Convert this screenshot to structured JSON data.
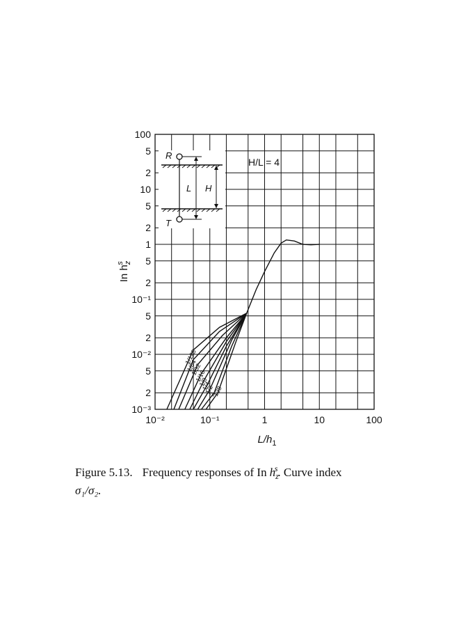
{
  "chart_data": {
    "type": "line",
    "xlog": true,
    "ylog": true,
    "grid": true,
    "xlim": [
      0.01,
      100
    ],
    "ylim": [
      0.001,
      100
    ],
    "xticks": [
      {
        "value": 0.01,
        "label": "10⁻²"
      },
      {
        "value": 0.1,
        "label": "10⁻¹"
      },
      1,
      10,
      100
    ],
    "xgrid": [
      0.02,
      0.05,
      0.2,
      0.5,
      2,
      5,
      20,
      50
    ],
    "yticks": [
      100,
      {
        "value": 50,
        "label": "5"
      },
      {
        "value": 20,
        "label": "2"
      },
      10,
      5,
      2,
      1,
      {
        "value": 0.5,
        "label": "5"
      },
      {
        "value": 0.2,
        "label": "2"
      },
      {
        "value": 0.1,
        "label": "10⁻¹"
      },
      {
        "value": 0.05,
        "label": "5"
      },
      {
        "value": 0.02,
        "label": "2"
      },
      {
        "value": 0.01,
        "label": "10⁻²"
      },
      {
        "value": 0.005,
        "label": "5"
      },
      {
        "value": 0.002,
        "label": "2"
      },
      {
        "value": 0.001,
        "label": "10⁻³"
      }
    ],
    "xlabel": {
      "base": "L/h",
      "sub": "1"
    },
    "ylabel": {
      "base": "In h",
      "sub": "z",
      "sup": "s"
    },
    "annotation": "H/L = 4",
    "inset_labels": {
      "R": "R",
      "T": "T",
      "L": "L",
      "H": "H"
    },
    "color": "#111111",
    "series": [
      {
        "x": [
          0.47,
          0.7,
          1,
          1.5,
          2,
          2.5,
          3.5,
          5,
          7,
          10
        ],
        "values": [
          0.056,
          0.15,
          0.32,
          0.7,
          1.05,
          1.2,
          1.15,
          1.0,
          0.98,
          1.0
        ]
      },
      {
        "name": "1/128",
        "x": [
          0.0164,
          0.05,
          0.15,
          0.47
        ],
        "values": [
          0.001,
          0.012,
          0.031,
          0.056
        ]
      },
      {
        "name": "1/64",
        "x": [
          0.022,
          0.05,
          0.15,
          0.47
        ],
        "values": [
          0.001,
          0.008,
          0.026,
          0.056
        ]
      },
      {
        "name": "1/32",
        "x": [
          0.027,
          0.06,
          0.17,
          0.47
        ],
        "values": [
          0.001,
          0.0065,
          0.022,
          0.056
        ]
      },
      {
        "name": "1/16",
        "x": [
          0.035,
          0.07,
          0.2,
          0.47
        ],
        "values": [
          0.001,
          0.0045,
          0.02,
          0.056
        ]
      },
      {
        "name": "1/8",
        "x": [
          0.043,
          0.08,
          0.2,
          0.47
        ],
        "values": [
          0.001,
          0.0035,
          0.017,
          0.056
        ]
      },
      {
        "name": "1/4",
        "x": [
          0.05,
          0.09,
          0.2,
          0.47
        ],
        "values": [
          0.001,
          0.0028,
          0.014,
          0.056
        ]
      },
      {
        "name": "1/2",
        "x": [
          0.06,
          0.1,
          0.25,
          0.47
        ],
        "values": [
          0.001,
          0.0023,
          0.018,
          0.056
        ]
      },
      {
        "name": "2",
        "x": [
          0.07,
          0.12,
          0.25,
          0.47
        ],
        "values": [
          0.001,
          0.002,
          0.014,
          0.056
        ]
      },
      {
        "name": "128",
        "x": [
          0.085,
          0.14,
          0.3,
          0.47
        ],
        "values": [
          0.001,
          0.002,
          0.017,
          0.056
        ]
      }
    ]
  },
  "caption": {
    "label": "Figure 5.13.",
    "text": "Frequency responses of In",
    "sym": "h",
    "sub": "z",
    "sup": "s",
    "rest": ".  Curve index",
    "line2": "σ₁/σ₂."
  }
}
